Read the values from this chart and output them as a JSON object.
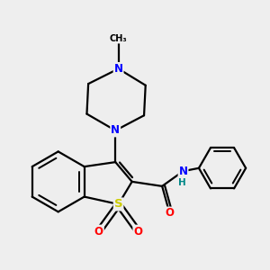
{
  "bg_color": "#eeeeee",
  "bond_color": "#000000",
  "bond_width": 1.6,
  "atom_colors": {
    "S": "#cccc00",
    "N": "#0000ff",
    "O": "#ff0000",
    "H": "#008888",
    "C": "#000000"
  },
  "font_size": 8.5,
  "fig_size": [
    3.0,
    3.0
  ],
  "dpi": 100
}
